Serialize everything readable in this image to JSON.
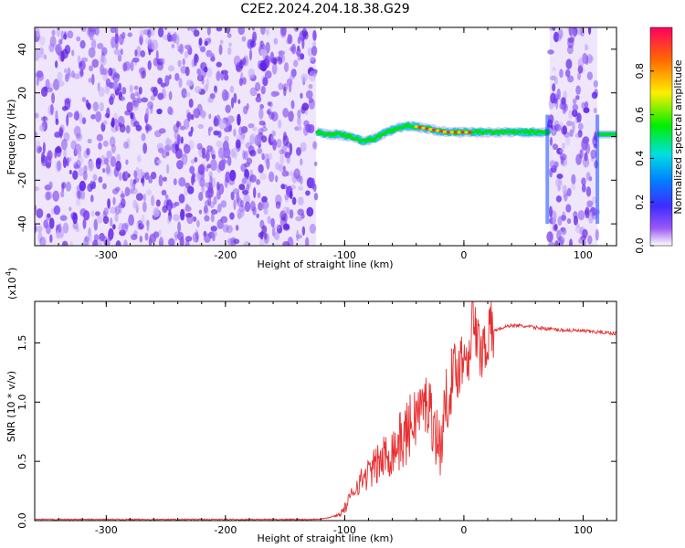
{
  "title": "C2E2.2024.204.18.38.G29",
  "chart_data": [
    {
      "type": "heatmap",
      "xlabel": "Height of straight line (km)",
      "ylabel": "Frequency (Hz)",
      "xlim": [
        -360,
        128
      ],
      "ylim": [
        -50,
        50
      ],
      "x_ticks": [
        -300,
        -200,
        -100,
        0,
        100
      ],
      "x_tick_labels": [
        "-300",
        "-200",
        "-100",
        "0",
        "100"
      ],
      "y_ticks": [
        -40,
        -20,
        0,
        20,
        40
      ],
      "y_tick_labels": [
        "-40",
        "-20",
        "0",
        "20",
        "40"
      ],
      "noise_regions_km": [
        [
          -360,
          -124
        ],
        [
          72,
          112
        ]
      ],
      "signal_trace": {
        "x": [
          -124,
          -115,
          -105,
          -95,
          -85,
          -75,
          -65,
          -55,
          -45,
          -35,
          -25,
          -15,
          -5,
          5,
          20,
          40,
          60,
          70,
          90,
          112,
          128
        ],
        "y": [
          2,
          1,
          1,
          0,
          -2,
          -1,
          2,
          4,
          5,
          4,
          3,
          2,
          2,
          2,
          2,
          2,
          2,
          2,
          2,
          1,
          1
        ]
      },
      "colorbar": {
        "label": "Normalized spectral amplitude",
        "range": [
          0,
          1
        ],
        "ticks": [
          0.0,
          0.2,
          0.4,
          0.6,
          0.8
        ],
        "tick_labels": [
          "0.0",
          "0.2",
          "0.4",
          "0.6",
          "0.8"
        ]
      }
    },
    {
      "type": "line",
      "xlabel": "Height of straight line (km)",
      "ylabel": "SNR (10 * v/v)",
      "multiplier_label": "(x10",
      "multiplier_exp": "4",
      "xlim": [
        -360,
        128
      ],
      "ylim": [
        0,
        1.85
      ],
      "x_ticks": [
        -300,
        -200,
        -100,
        0,
        100
      ],
      "x_tick_labels": [
        "-300",
        "-200",
        "-100",
        "0",
        "100"
      ],
      "y_ticks": [
        0.0,
        0.5,
        1.0,
        1.5
      ],
      "y_tick_labels": [
        "0.0",
        "0.5",
        "1.0",
        "1.5"
      ],
      "series": [
        {
          "color": "#e83030",
          "x": [
            -360,
            -130,
            -115,
            -105,
            -100,
            -95,
            -90,
            -80,
            -70,
            -60,
            -50,
            -40,
            -30,
            -20,
            -15,
            -10,
            -5,
            0,
            5,
            8,
            10,
            15,
            20,
            25,
            30,
            40,
            50,
            60,
            80,
            100,
            128
          ],
          "y": [
            0.01,
            0.01,
            0.02,
            0.05,
            0.1,
            0.2,
            0.3,
            0.4,
            0.5,
            0.6,
            0.7,
            0.9,
            1.0,
            0.6,
            1.0,
            1.2,
            1.3,
            1.4,
            1.45,
            1.85,
            1.5,
            1.45,
            1.55,
            1.6,
            1.62,
            1.65,
            1.64,
            1.63,
            1.61,
            1.6,
            1.58
          ]
        }
      ]
    }
  ]
}
